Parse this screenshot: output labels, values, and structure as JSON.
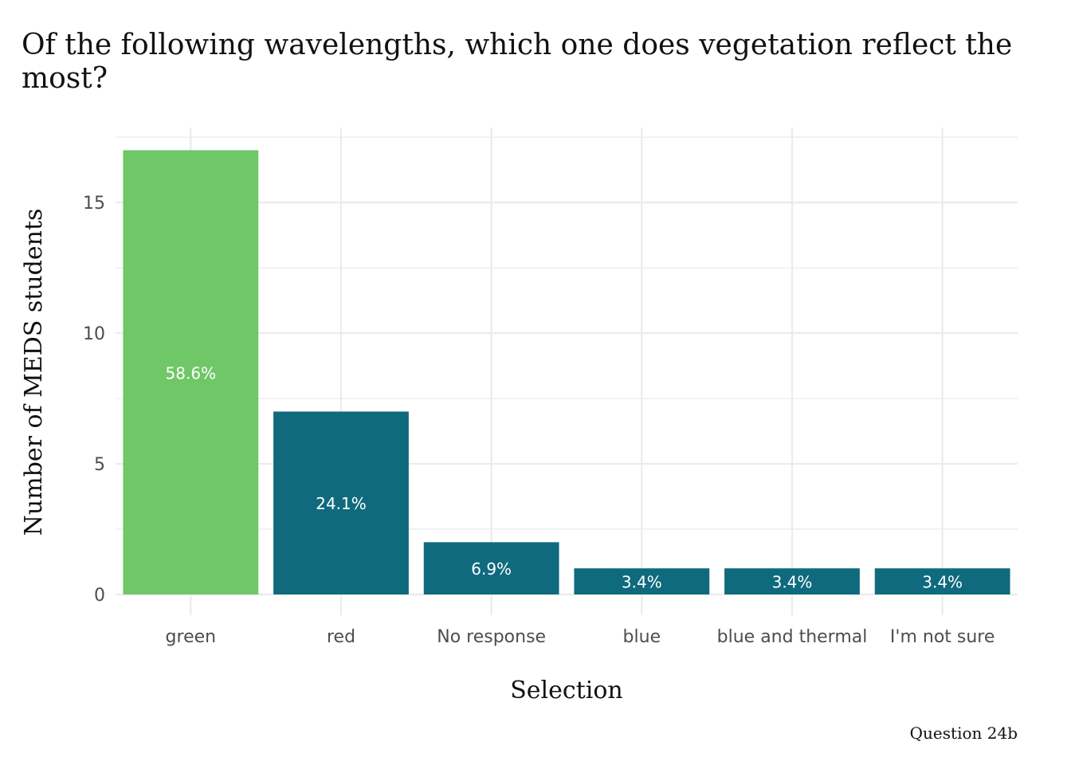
{
  "chart_data": {
    "type": "bar",
    "title_lines": [
      "Of the following wavelengths, which one does vegetation reflect the",
      "most?"
    ],
    "xlabel": "Selection",
    "ylabel": "Number of MEDS students",
    "caption": "Question 24b",
    "categories": [
      "green",
      "red",
      "No response",
      "blue",
      "blue and thermal",
      "I'm not sure"
    ],
    "values": [
      17,
      7,
      2,
      1,
      1,
      1
    ],
    "labels": [
      "58.6%",
      "24.1%",
      "6.9%",
      "3.4%",
      "3.4%",
      "3.4%"
    ],
    "highlight": [
      true,
      false,
      false,
      false,
      false,
      false
    ],
    "yticks": [
      0,
      5,
      10,
      15
    ],
    "yticklabels": [
      "0",
      "5",
      "10",
      "15"
    ],
    "ylim": [
      0,
      17.87
    ],
    "grid": true,
    "colors": {
      "highlight": "#6FC767",
      "default": "#0F6A7E",
      "grid": "#EBEBEB",
      "bar_label": "#FFFFFF",
      "tick_text": "#4D4D4D"
    }
  }
}
